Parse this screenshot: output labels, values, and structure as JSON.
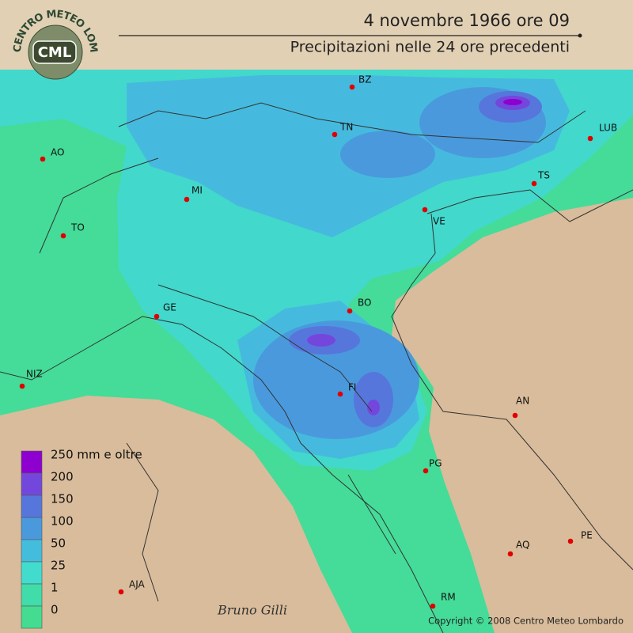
{
  "header": {
    "title": "4 novembre 1966 ore 09",
    "subtitle": "Precipitazioni nelle 24 ore precedenti"
  },
  "logo": {
    "ring": "CENTRO METEO LOMBARDO",
    "short": "CML"
  },
  "cities": [
    "BZ",
    "TN",
    "AO",
    "MI",
    "TO",
    "VE",
    "TS",
    "LUB",
    "GE",
    "BO",
    "NIZ",
    "FI",
    "AN",
    "PG",
    "AQ",
    "PE",
    "AJA",
    "RM"
  ],
  "legend": {
    "items": [
      {
        "label": "250 mm e oltre",
        "color": "#8e00d0"
      },
      {
        "label": "200",
        "color": "#7447dc"
      },
      {
        "label": "150",
        "color": "#5776dc"
      },
      {
        "label": "100",
        "color": "#4a99dd"
      },
      {
        "label": "50",
        "color": "#44bddd"
      },
      {
        "label": "25",
        "color": "#42dccf"
      },
      {
        "label": "1",
        "color": "#40dcaa"
      },
      {
        "label": "0",
        "color": "#44dc90"
      }
    ]
  },
  "signature": "Bruno Gilli",
  "copyright": "Copyright © 2008 Centro Meteo Lombardo"
}
